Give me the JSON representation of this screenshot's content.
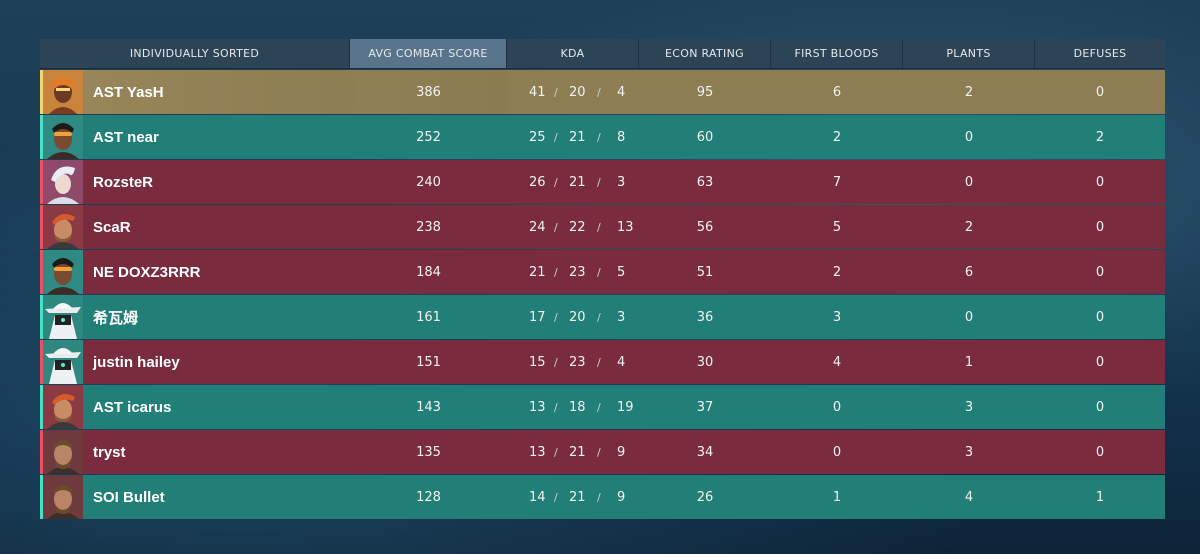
{
  "header": {
    "sort_label": "INDIVIDUALLY SORTED",
    "columns": [
      "AVG COMBAT SCORE",
      "KDA",
      "ECON RATING",
      "FIRST BLOODS",
      "PLANTS",
      "DEFUSES"
    ]
  },
  "players": [
    {
      "name": "AST YasH",
      "team": "gold",
      "avatar": "kayo-icon",
      "acs": "386",
      "k": "41",
      "d": "20",
      "a": "4",
      "econ": "95",
      "fb": "6",
      "plants": "2",
      "defuses": "0"
    },
    {
      "name": "AST near",
      "team": "teal",
      "avatar": "phoenix-icon",
      "acs": "252",
      "k": "25",
      "d": "21",
      "a": "8",
      "econ": "60",
      "fb": "2",
      "plants": "0",
      "defuses": "2"
    },
    {
      "name": "RozsteR",
      "team": "red",
      "avatar": "jett-icon",
      "acs": "240",
      "k": "26",
      "d": "21",
      "a": "3",
      "econ": "63",
      "fb": "7",
      "plants": "0",
      "defuses": "0"
    },
    {
      "name": "ScaR",
      "team": "red",
      "avatar": "breach-icon",
      "acs": "238",
      "k": "24",
      "d": "22",
      "a": "13",
      "econ": "56",
      "fb": "5",
      "plants": "2",
      "defuses": "0"
    },
    {
      "name": "NE DOXZ3RRR",
      "team": "red",
      "avatar": "phoenix-icon",
      "acs": "184",
      "k": "21",
      "d": "23",
      "a": "5",
      "econ": "51",
      "fb": "2",
      "plants": "6",
      "defuses": "0"
    },
    {
      "name": "希瓦姆",
      "team": "teal",
      "avatar": "cypher-icon",
      "acs": "161",
      "k": "17",
      "d": "20",
      "a": "3",
      "econ": "36",
      "fb": "3",
      "plants": "0",
      "defuses": "0"
    },
    {
      "name": "justin hailey",
      "team": "red",
      "avatar": "cypher-icon",
      "acs": "151",
      "k": "15",
      "d": "23",
      "a": "4",
      "econ": "30",
      "fb": "4",
      "plants": "1",
      "defuses": "0"
    },
    {
      "name": "AST icarus",
      "team": "teal",
      "avatar": "breach-icon",
      "acs": "143",
      "k": "13",
      "d": "18",
      "a": "19",
      "econ": "37",
      "fb": "0",
      "plants": "3",
      "defuses": "0"
    },
    {
      "name": "tryst",
      "team": "red",
      "avatar": "sova-icon",
      "acs": "135",
      "k": "13",
      "d": "21",
      "a": "9",
      "econ": "34",
      "fb": "0",
      "plants": "3",
      "defuses": "0"
    },
    {
      "name": "SOI Bullet",
      "team": "teal",
      "avatar": "sova-icon",
      "acs": "128",
      "k": "14",
      "d": "21",
      "a": "9",
      "econ": "26",
      "fb": "1",
      "plants": "4",
      "defuses": "1"
    }
  ],
  "separator": "/",
  "colors": {
    "teal_row": "#227f77",
    "red_row": "#7a2c3e",
    "gold_row": "#8c7d52",
    "teal_accent": "#47e0c5",
    "red_accent": "#ef4f62",
    "gold_accent": "#f4d374"
  }
}
